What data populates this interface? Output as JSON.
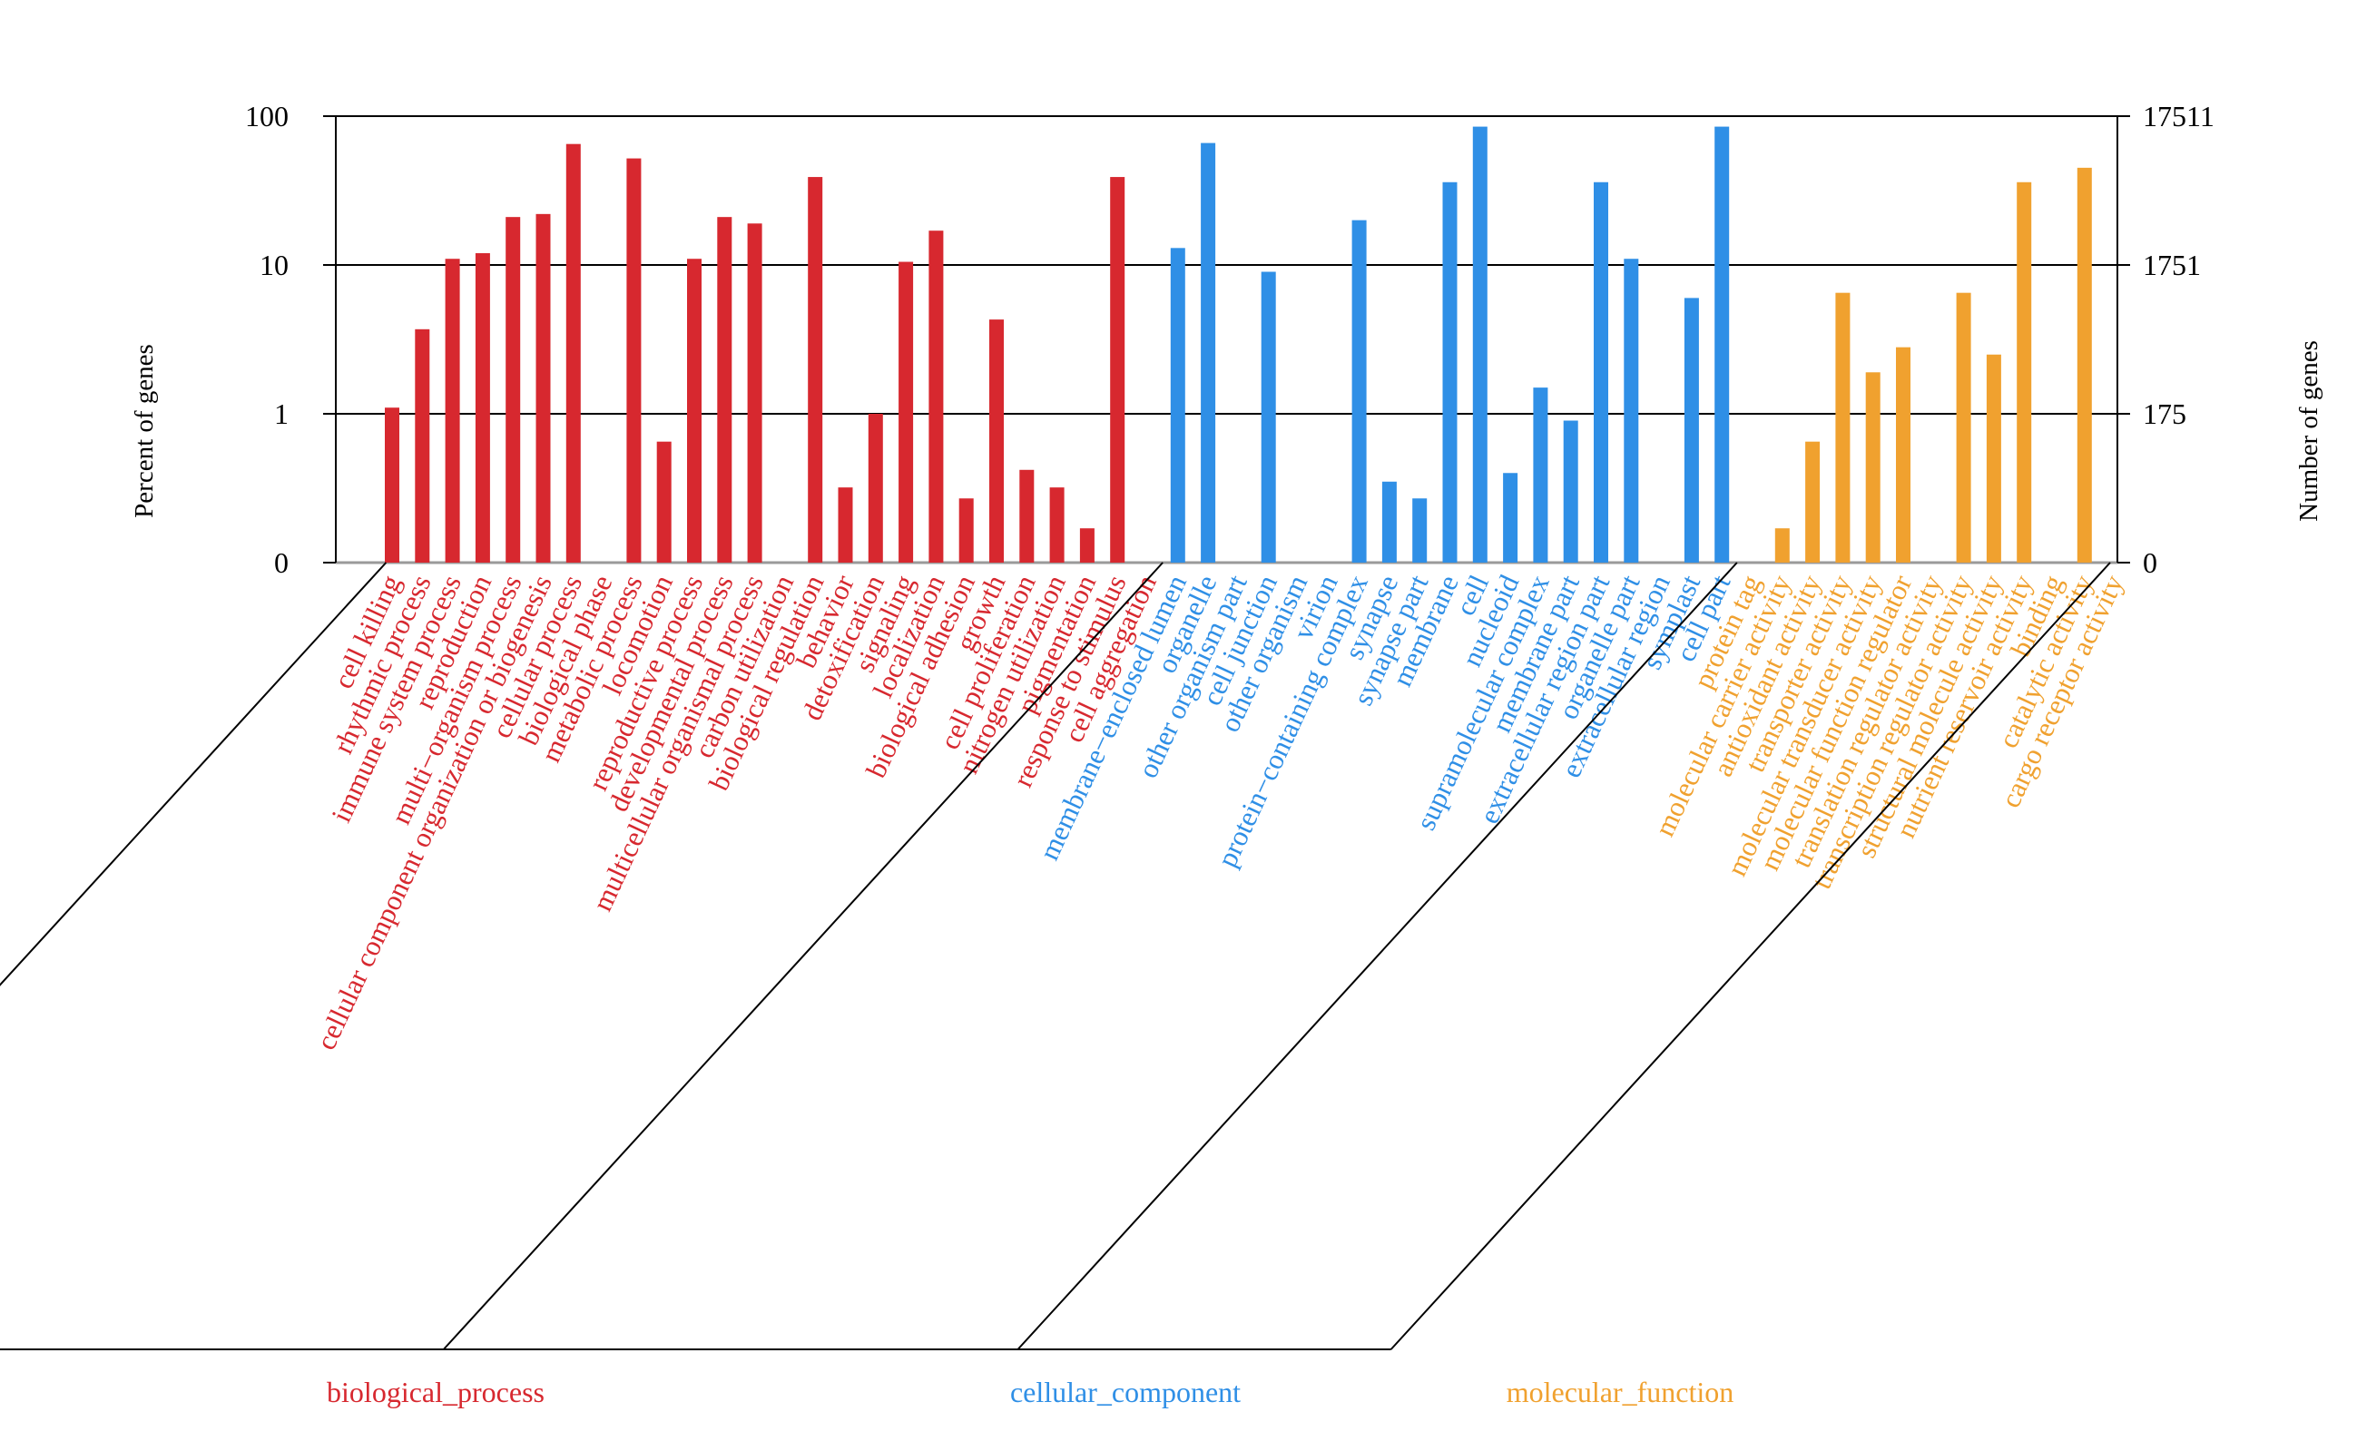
{
  "chart_data": {
    "type": "bar",
    "ylabel_left": "Percent of genes",
    "ylabel_right": "Number of genes",
    "left_ticks": [
      "100",
      "10",
      "1",
      "0"
    ],
    "right_ticks": [
      "17511",
      "1751",
      "175",
      "0"
    ],
    "scale": "log10",
    "groups": [
      {
        "name": "biological_process",
        "color": "#d7282f",
        "categories": [
          {
            "label": "cell killing",
            "value": 1.1
          },
          {
            "label": "rhythmic process",
            "value": 3.7
          },
          {
            "label": "immune system process",
            "value": 11
          },
          {
            "label": "reproduction",
            "value": 12
          },
          {
            "label": "multi−organism process",
            "value": 21
          },
          {
            "label": "cellular component organization or biogenesis",
            "value": 22
          },
          {
            "label": "cellular process",
            "value": 65
          },
          {
            "label": "biological phase",
            "value": null
          },
          {
            "label": "metabolic process",
            "value": 52
          },
          {
            "label": "locomotion",
            "value": 0.65
          },
          {
            "label": "reproductive process",
            "value": 11
          },
          {
            "label": "developmental process",
            "value": 21
          },
          {
            "label": "multicellular organismal process",
            "value": 19
          },
          {
            "label": "carbon utilization",
            "value": null
          },
          {
            "label": "biological regulation",
            "value": 39
          },
          {
            "label": "behavior",
            "value": 0.32
          },
          {
            "label": "detoxification",
            "value": 1.0
          },
          {
            "label": "signaling",
            "value": 10.5
          },
          {
            "label": "localization",
            "value": 17
          },
          {
            "label": "biological adhesion",
            "value": 0.27
          },
          {
            "label": "growth",
            "value": 4.3
          },
          {
            "label": "cell proliferation",
            "value": 0.42
          },
          {
            "label": "nitrogen utilization",
            "value": 0.32
          },
          {
            "label": "pigmentation",
            "value": 0.17
          },
          {
            "label": "response to stimulus",
            "value": 39
          },
          {
            "label": "cell aggregation",
            "value": null
          }
        ]
      },
      {
        "name": "cellular_component",
        "color": "#2f8fe6",
        "categories": [
          {
            "label": "membrane−enclosed lumen",
            "value": 13
          },
          {
            "label": "organelle",
            "value": 66
          },
          {
            "label": "other organism part",
            "value": null
          },
          {
            "label": "cell junction",
            "value": 9
          },
          {
            "label": "other organism",
            "value": null
          },
          {
            "label": "virion",
            "value": null
          },
          {
            "label": "protein−containing complex",
            "value": 20
          },
          {
            "label": "synapse",
            "value": 0.35
          },
          {
            "label": "synapse part",
            "value": 0.27
          },
          {
            "label": "membrane",
            "value": 36
          },
          {
            "label": "cell",
            "value": 85
          },
          {
            "label": "nucleoid",
            "value": 0.4
          },
          {
            "label": "supramolecular complex",
            "value": 1.5
          },
          {
            "label": "membrane part",
            "value": 0.9
          },
          {
            "label": "extracellular region part",
            "value": 36
          },
          {
            "label": "organelle part",
            "value": 11
          },
          {
            "label": "extracellular region",
            "value": null
          },
          {
            "label": "symplast",
            "value": 6
          },
          {
            "label": "cell part",
            "value": 85
          }
        ]
      },
      {
        "name": "molecular_function",
        "color": "#f0a12f",
        "categories": [
          {
            "label": "protein tag",
            "value": null
          },
          {
            "label": "molecular carrier activity",
            "value": 0.17
          },
          {
            "label": "antioxidant activity",
            "value": 0.65
          },
          {
            "label": "transporter activity",
            "value": 6.5
          },
          {
            "label": "molecular transducer activity",
            "value": 1.9
          },
          {
            "label": "molecular function regulator",
            "value": 2.8
          },
          {
            "label": "translation regulator activity",
            "value": 0.08
          },
          {
            "label": "transcription regulator activity",
            "value": 6.5
          },
          {
            "label": "structural molecule activity",
            "value": 2.5
          },
          {
            "label": "nutrient reservoir activity",
            "value": 36
          },
          {
            "label": "binding",
            "value": null
          },
          {
            "label": "catalytic activity",
            "value": 45
          },
          {
            "label": "cargo receptor activity",
            "value": null
          }
        ]
      }
    ]
  }
}
